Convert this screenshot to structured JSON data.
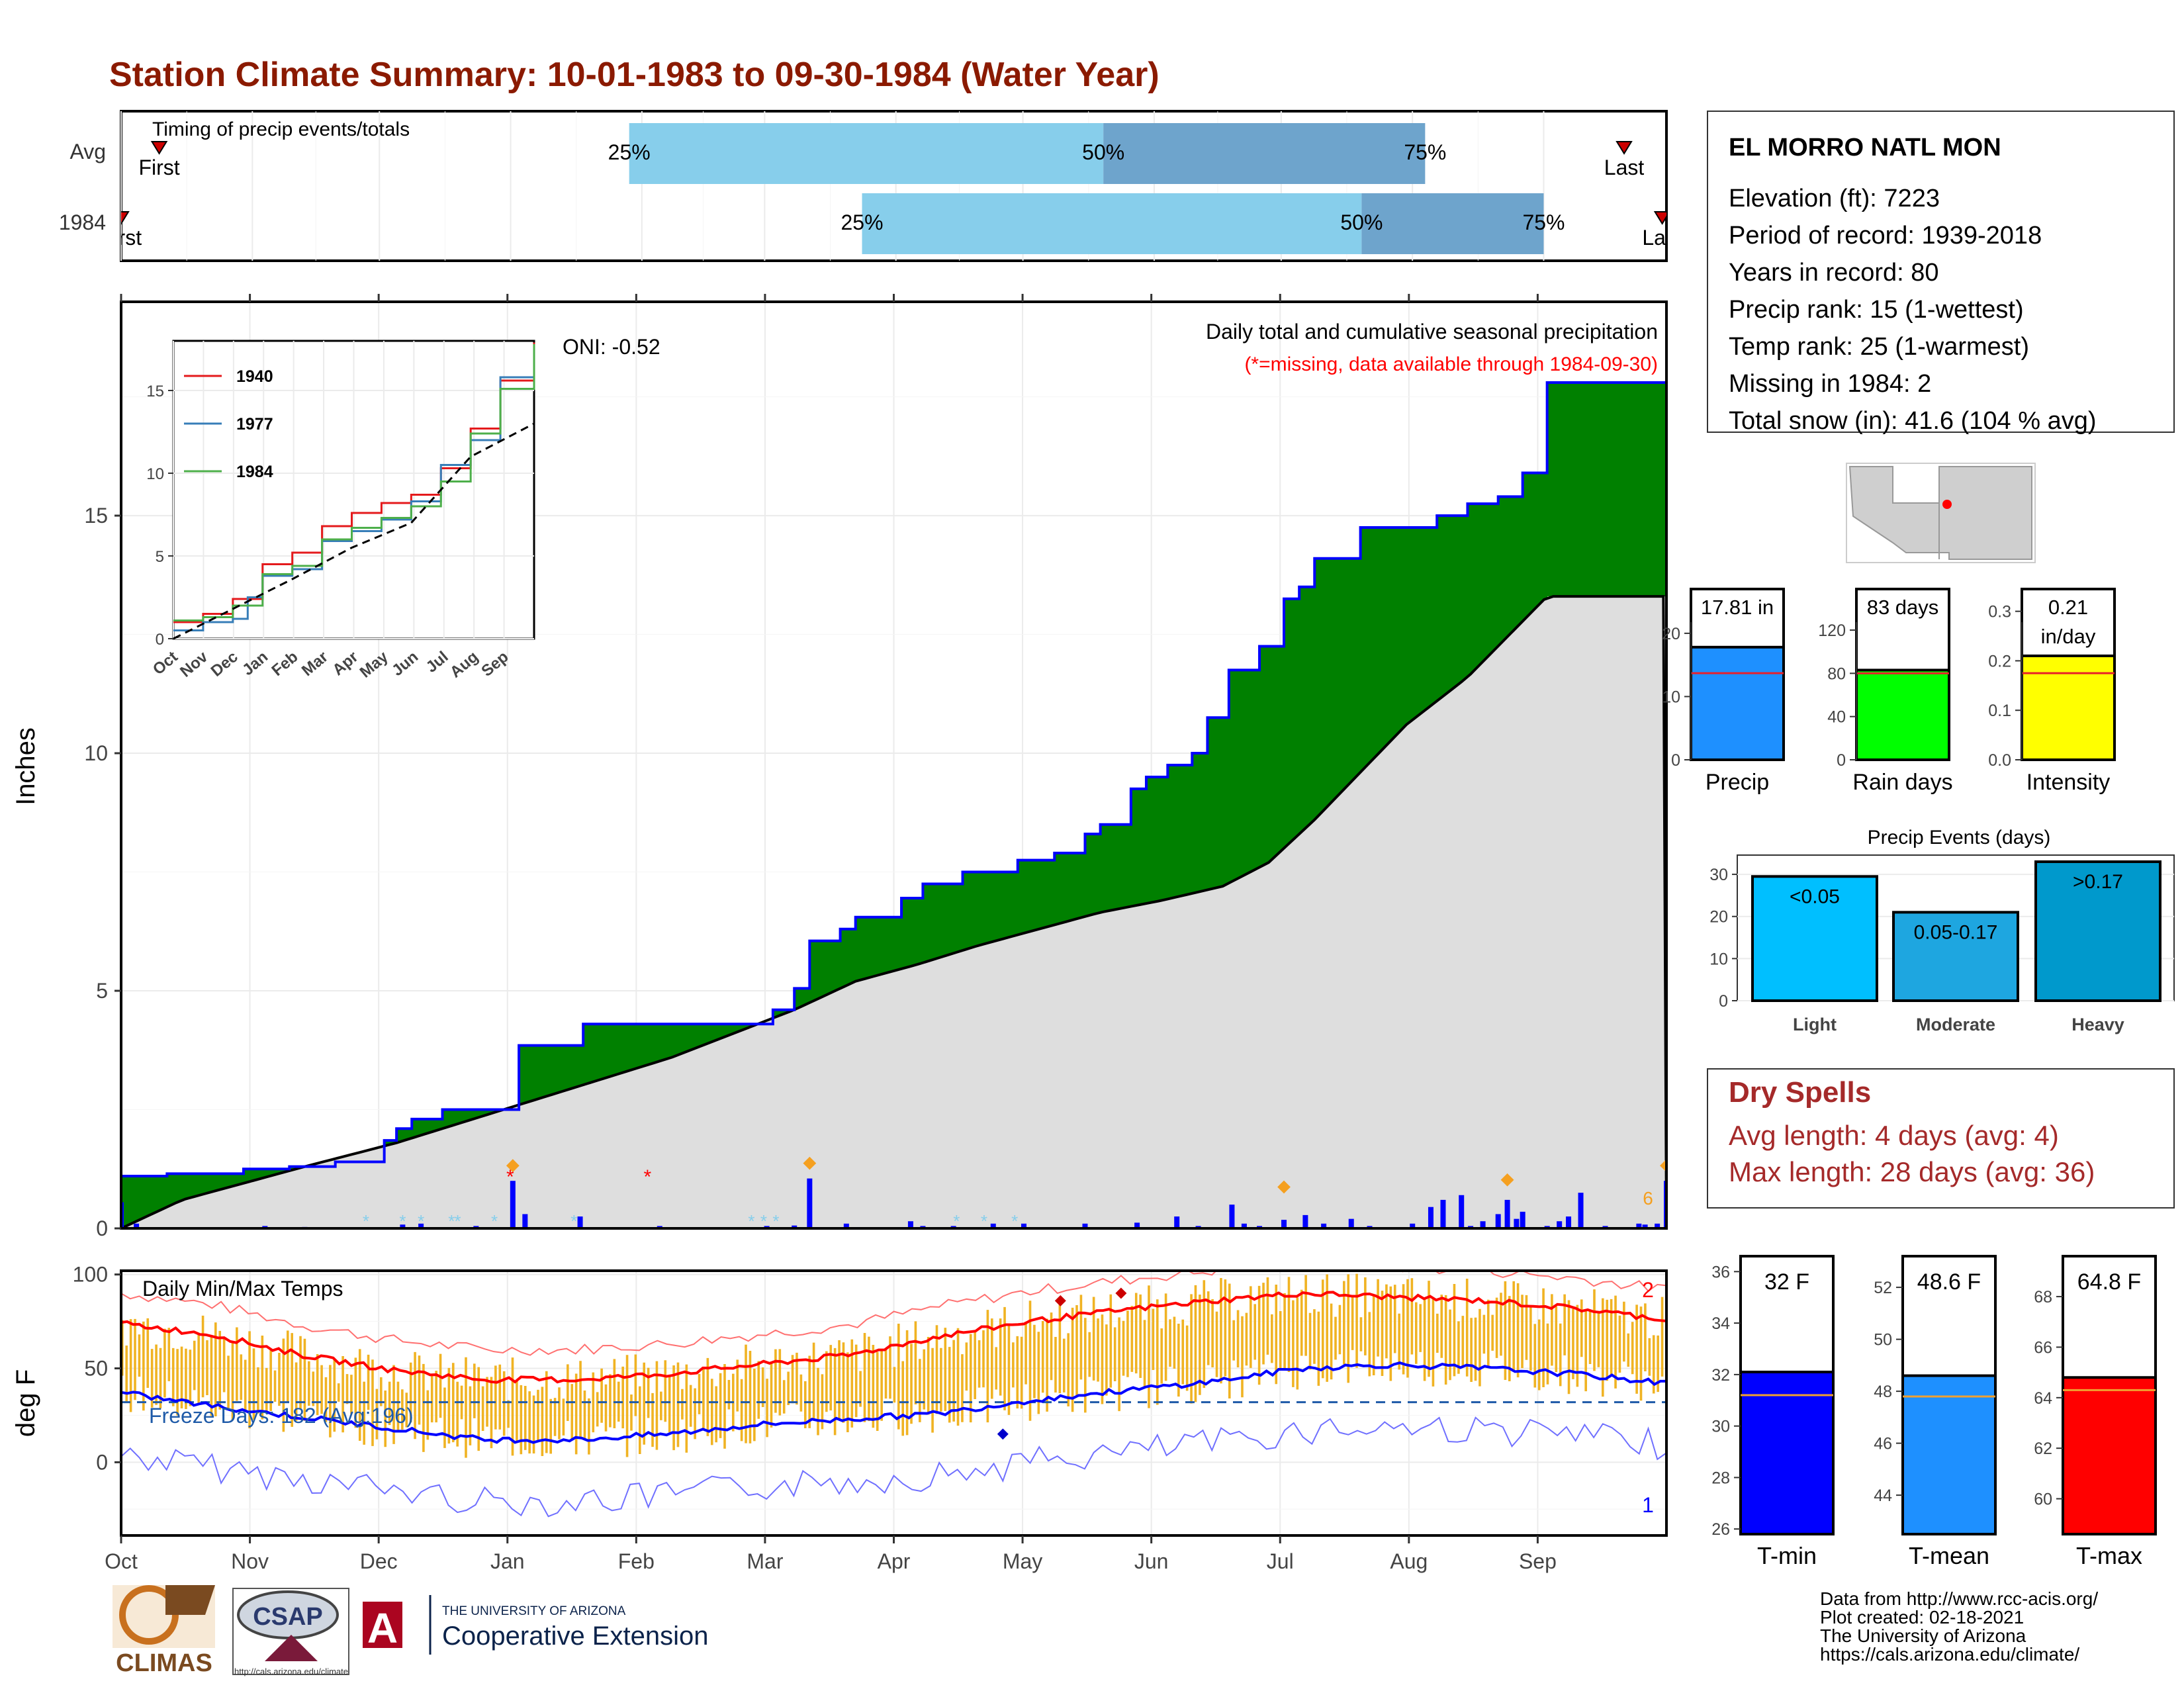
{
  "page_title": "Station Climate Summary: 10-01-1983 to 09-30-1984 (Water Year)",
  "colors": {
    "title": "#8b1a00",
    "precip_green": "#008000",
    "deficit_brown": "#7f4f00",
    "cumulative_avg_gray": "#dedede",
    "quartile_light": "#87ceeb",
    "quartile_dark": "#6ea4cc",
    "bar_blue": "#0000ff",
    "temp_fill": "#f0b323",
    "dry_spells_text": "#a52a2a"
  },
  "timing": {
    "title": "Timing of precip events/totals",
    "rows": [
      {
        "label": "Avg",
        "first_label": "First",
        "last_label": "Last",
        "first_day": 9,
        "last_day": 355,
        "q25_day": 120,
        "q50_day": 232,
        "q75_day": 308
      },
      {
        "label": "1984",
        "first_label": "First",
        "last_label": "Last",
        "first_day": 0,
        "last_day": 364,
        "q25_day": 175,
        "q50_day": 293,
        "q75_day": 336
      }
    ],
    "q_labels": [
      "25%",
      "50%",
      "75%"
    ]
  },
  "precip_panel": {
    "ylabel": "Inches",
    "y_ticks": [
      0,
      5,
      10,
      15
    ],
    "ylim": [
      0,
      19.5
    ],
    "subtitle": "Daily total and cumulative seasonal precipitation",
    "missing_note": "(*=missing, data available through 1984-09-30)",
    "oni": "ONI: -0.52",
    "end_marker": "6"
  },
  "inset": {
    "y_ticks": [
      0,
      5,
      10,
      15
    ],
    "x_labels": [
      "Oct",
      "Nov",
      "Dec",
      "Jan",
      "Feb",
      "Mar",
      "Apr",
      "May",
      "Jun",
      "Jul",
      "Aug",
      "Sep"
    ],
    "legend": [
      {
        "name": "1940",
        "color": "#e41a1c"
      },
      {
        "name": "1977",
        "color": "#377eb8"
      },
      {
        "name": "1984",
        "color": "#4daf4a"
      }
    ]
  },
  "temp_panel": {
    "ylabel": "deg F",
    "title": "Daily Min/Max Temps",
    "y_ticks": [
      0,
      50,
      100
    ],
    "ylim": [
      -39,
      102
    ],
    "freeze_label": "Freeze Days: 182 (Avg:196)",
    "count_top": "2",
    "count_bottom": "1"
  },
  "months": [
    "Oct",
    "Nov",
    "Dec",
    "Jan",
    "Feb",
    "Mar",
    "Apr",
    "May",
    "Jun",
    "Jul",
    "Aug",
    "Sep"
  ],
  "station": {
    "name": "EL MORRO NATL MON",
    "lines": [
      "Elevation (ft): 7223",
      "Period of record: 1939-2018",
      "Years in record: 80",
      "Precip rank: 15 (1-wettest)",
      "Temp rank: 25 (1-warmest)",
      "Missing in 1984: 2",
      "Total snow (in): 41.6 (104 % avg)"
    ]
  },
  "summary_bars": [
    {
      "label": "Precip",
      "value_label": "17.81 in",
      "value": 17.81,
      "avg": 13.7,
      "ticks": [
        0,
        10,
        20
      ],
      "ymax": 27,
      "color": "#1e90ff"
    },
    {
      "label": "Rain days",
      "value_label": "83 days",
      "value": 83,
      "avg": 80,
      "ticks": [
        0,
        40,
        80,
        120
      ],
      "ymax": 158,
      "color": "#00ff00"
    },
    {
      "label": "Intensity",
      "value_label": "0.21",
      "value_label2": "in/day",
      "value": 0.21,
      "avg": 0.175,
      "ticks": [
        0.0,
        0.1,
        0.2,
        0.3
      ],
      "ymax": 0.345,
      "color": "#ffff00"
    }
  ],
  "precip_events": {
    "title": "Precip Events (days)",
    "y_ticks": [
      0,
      10,
      20,
      30
    ],
    "ymax": 33,
    "bars": [
      {
        "label": "Light",
        "value_label": "<0.05",
        "value": 29.5,
        "color": "#00bfff"
      },
      {
        "label": "Moderate",
        "value_label": "0.05-0.17",
        "value": 21,
        "color": "#1ea6e0"
      },
      {
        "label": "Heavy",
        "value_label": ">0.17",
        "value": 33,
        "color": "#0099cc"
      }
    ]
  },
  "dry_spells": {
    "title": "Dry Spells",
    "avg_line": "Avg length: 4 days (avg: 4)",
    "max_line": "Max length: 28 days (avg: 36)"
  },
  "temp_bars": [
    {
      "label": "T-min",
      "value_label": "32 F",
      "value": 32.1,
      "avg": 31.2,
      "ticks": [
        26,
        28,
        30,
        32,
        34,
        36
      ],
      "ymin": 25.8,
      "ymax": 36.6,
      "color": "#0000ff"
    },
    {
      "label": "T-mean",
      "value_label": "48.6 F",
      "value": 48.6,
      "avg": 47.8,
      "ticks": [
        44,
        46,
        48,
        50,
        52
      ],
      "ymin": 42.5,
      "ymax": 53.2,
      "color": "#1e90ff"
    },
    {
      "label": "T-max",
      "value_label": "64.8 F",
      "value": 64.8,
      "avg": 64.3,
      "ticks": [
        60,
        62,
        64,
        66,
        68
      ],
      "ymin": 58.6,
      "ymax": 69.6,
      "color": "#ff0000"
    }
  ],
  "credits": [
    "Data from http://www.rcc-acis.org/",
    "Plot created: 02-18-2021",
    "The University of Arizona",
    "https://cals.arizona.edu/climate/"
  ],
  "logos": {
    "climas": "CLIMAS",
    "csap": "CSAP",
    "csap_url": "http://cals.arizona.edu/climate",
    "ua_top": "THE UNIVERSITY OF ARIZONA",
    "ua_main": "Cooperative Extension",
    "ua_letter": "A"
  },
  "chart_data": [
    {
      "type": "area",
      "title": "Daily total and cumulative seasonal precipitation",
      "ylabel": "Inches",
      "ylim": [
        0,
        19.5
      ],
      "x_unit": "day of water year (Oct 1 = 0)",
      "cumulative_1984": [
        [
          0,
          1.1
        ],
        [
          15,
          1.15
        ],
        [
          40,
          1.25
        ],
        [
          55,
          1.3
        ],
        [
          70,
          1.4
        ],
        [
          86,
          1.85
        ],
        [
          90,
          2.1
        ],
        [
          95,
          2.3
        ],
        [
          105,
          2.5
        ],
        [
          128,
          2.5
        ],
        [
          130,
          3.85
        ],
        [
          150,
          3.85
        ],
        [
          151,
          4.3
        ],
        [
          210,
          4.3
        ],
        [
          213,
          4.6
        ],
        [
          220,
          5.05
        ],
        [
          225,
          6.05
        ],
        [
          235,
          6.3
        ],
        [
          240,
          6.55
        ],
        [
          250,
          6.55
        ],
        [
          255,
          6.95
        ],
        [
          262,
          7.25
        ],
        [
          272,
          7.25
        ],
        [
          275,
          7.5
        ],
        [
          290,
          7.5
        ],
        [
          293,
          7.75
        ],
        [
          305,
          7.9
        ],
        [
          310,
          7.9
        ],
        [
          315,
          8.3
        ],
        [
          320,
          8.5
        ],
        [
          330,
          9.25
        ],
        [
          335,
          9.5
        ],
        [
          342,
          9.75
        ],
        [
          350,
          10.0
        ],
        [
          355,
          10.75
        ],
        [
          362,
          11.75
        ],
        [
          372,
          12.25
        ],
        [
          375,
          12.25
        ],
        [
          380,
          13.25
        ],
        [
          385,
          13.5
        ],
        [
          390,
          14.1
        ],
        [
          398,
          14.1
        ],
        [
          405,
          14.75
        ],
        [
          415,
          14.75
        ],
        [
          430,
          15.0
        ],
        [
          440,
          15.25
        ],
        [
          450,
          15.4
        ],
        [
          458,
          15.9
        ],
        [
          466,
          17.8
        ]
      ],
      "cumulative_avg": [
        [
          0,
          0
        ],
        [
          20,
          0.6
        ],
        [
          40,
          0.95
        ],
        [
          60,
          1.3
        ],
        [
          90,
          1.8
        ],
        [
          120,
          2.4
        ],
        [
          150,
          3.0
        ],
        [
          180,
          3.6
        ],
        [
          200,
          4.1
        ],
        [
          220,
          4.6
        ],
        [
          240,
          5.2
        ],
        [
          260,
          5.55
        ],
        [
          280,
          5.95
        ],
        [
          300,
          6.3
        ],
        [
          320,
          6.65
        ],
        [
          340,
          6.9
        ],
        [
          360,
          7.2
        ],
        [
          375,
          7.7
        ],
        [
          390,
          8.6
        ],
        [
          405,
          9.6
        ],
        [
          420,
          10.6
        ],
        [
          440,
          11.6
        ],
        [
          466,
          13.3
        ]
      ],
      "daily_precip": [
        [
          0,
          0.55
        ],
        [
          5,
          0.1
        ],
        [
          47,
          0.05
        ],
        [
          60,
          0.03
        ],
        [
          92,
          0.08
        ],
        [
          98,
          0.1
        ],
        [
          116,
          0.05
        ],
        [
          128,
          1.0
        ],
        [
          132,
          0.3
        ],
        [
          150,
          0.25
        ],
        [
          176,
          0.05
        ],
        [
          211,
          0.05
        ],
        [
          220,
          0.06
        ],
        [
          225,
          1.05
        ],
        [
          237,
          0.1
        ],
        [
          258,
          0.15
        ],
        [
          262,
          0.05
        ],
        [
          272,
          0.05
        ],
        [
          285,
          0.1
        ],
        [
          295,
          0.1
        ],
        [
          315,
          0.1
        ],
        [
          332,
          0.12
        ],
        [
          345,
          0.25
        ],
        [
          352,
          0.05
        ],
        [
          363,
          0.5
        ],
        [
          367,
          0.1
        ],
        [
          372,
          0.05
        ],
        [
          380,
          0.18
        ],
        [
          387,
          0.28
        ],
        [
          393,
          0.1
        ],
        [
          402,
          0.2
        ],
        [
          408,
          0.05
        ],
        [
          422,
          0.1
        ],
        [
          428,
          0.45
        ],
        [
          432,
          0.6
        ],
        [
          438,
          0.7
        ],
        [
          441,
          0.05
        ],
        [
          445,
          0.15
        ],
        [
          450,
          0.3
        ],
        [
          453,
          0.6
        ],
        [
          456,
          0.2
        ],
        [
          458,
          0.35
        ],
        [
          466,
          0.05
        ],
        [
          470,
          0.15
        ],
        [
          473,
          0.25
        ],
        [
          477,
          0.75
        ],
        [
          485,
          0.05
        ],
        [
          496,
          0.1
        ],
        [
          498,
          0.08
        ],
        [
          502,
          0.1
        ],
        [
          505,
          1.0
        ]
      ]
    },
    {
      "type": "line",
      "title": "Cumulative precipitation comparison (inset)",
      "ylim": [
        0,
        18
      ],
      "series": [
        {
          "name": "1940",
          "points": [
            [
              0,
              1
            ],
            [
              30,
              1.5
            ],
            [
              60,
              2.4
            ],
            [
              90,
              4.5
            ],
            [
              120,
              5.2
            ],
            [
              150,
              6.8
            ],
            [
              180,
              7.6
            ],
            [
              210,
              8.2
            ],
            [
              240,
              8.7
            ],
            [
              270,
              10.3
            ],
            [
              300,
              12.7
            ],
            [
              330,
              15.6
            ],
            [
              364,
              17.9
            ]
          ]
        },
        {
          "name": "1977",
          "points": [
            [
              0,
              0.5
            ],
            [
              30,
              1.0
            ],
            [
              60,
              1.2
            ],
            [
              75,
              2.5
            ],
            [
              90,
              3.8
            ],
            [
              120,
              4.2
            ],
            [
              150,
              5.9
            ],
            [
              180,
              6.5
            ],
            [
              210,
              7.2
            ],
            [
              240,
              8.3
            ],
            [
              270,
              10.5
            ],
            [
              300,
              12.0
            ],
            [
              330,
              15.8
            ],
            [
              364,
              17.5
            ]
          ]
        },
        {
          "name": "1984",
          "points": [
            [
              0,
              1.1
            ],
            [
              30,
              1.3
            ],
            [
              60,
              2.0
            ],
            [
              90,
              3.9
            ],
            [
              120,
              4.4
            ],
            [
              150,
              6.0
            ],
            [
              180,
              6.7
            ],
            [
              210,
              7.3
            ],
            [
              240,
              8.0
            ],
            [
              270,
              9.5
            ],
            [
              300,
              12.4
            ],
            [
              330,
              15.1
            ],
            [
              364,
              17.8
            ]
          ]
        }
      ],
      "avg_line": [
        [
          0,
          0
        ],
        [
          60,
          1.8
        ],
        [
          120,
          3.6
        ],
        [
          180,
          5.5
        ],
        [
          240,
          7.0
        ],
        [
          300,
          11.0
        ],
        [
          364,
          13.0
        ]
      ]
    },
    {
      "type": "line",
      "title": "Daily Min/Max Temps",
      "ylabel": "deg F",
      "ylim": [
        -39,
        102
      ],
      "avg_max": [
        [
          0,
          74
        ],
        [
          30,
          68
        ],
        [
          60,
          57
        ],
        [
          90,
          49
        ],
        [
          120,
          44
        ],
        [
          150,
          44
        ],
        [
          180,
          47
        ],
        [
          210,
          52
        ],
        [
          240,
          57
        ],
        [
          270,
          67
        ],
        [
          300,
          75
        ],
        [
          330,
          81
        ],
        [
          360,
          86
        ],
        [
          390,
          90
        ],
        [
          420,
          88
        ],
        [
          450,
          86
        ],
        [
          480,
          82
        ],
        [
          510,
          76
        ]
      ],
      "avg_min": [
        [
          0,
          37
        ],
        [
          30,
          30
        ],
        [
          60,
          24
        ],
        [
          90,
          18
        ],
        [
          120,
          12
        ],
        [
          150,
          12
        ],
        [
          180,
          15
        ],
        [
          210,
          20
        ],
        [
          240,
          23
        ],
        [
          270,
          26
        ],
        [
          300,
          33
        ],
        [
          330,
          38
        ],
        [
          360,
          43
        ],
        [
          390,
          50
        ],
        [
          420,
          52
        ],
        [
          450,
          50
        ],
        [
          480,
          47
        ],
        [
          510,
          42
        ]
      ],
      "freeze_threshold": 32
    },
    {
      "type": "bar",
      "title": "Precip Events (days)",
      "categories": [
        "Light",
        "Moderate",
        "Heavy"
      ],
      "values": [
        29.5,
        21,
        33
      ]
    }
  ]
}
